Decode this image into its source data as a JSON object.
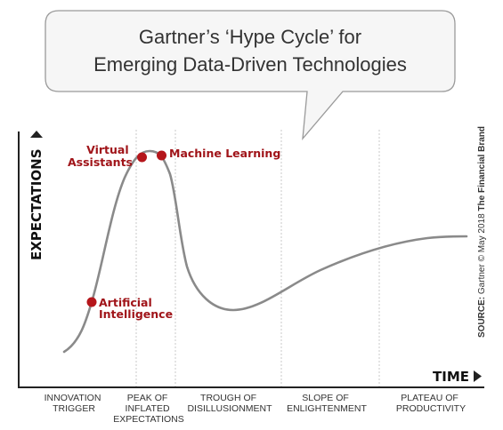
{
  "title": {
    "line1": "Gartner’s ‘Hype Cycle’ for",
    "line2": "Emerging Data-Driven Technologies"
  },
  "axes": {
    "y_label": "EXPECTATIONS",
    "x_label": "TIME"
  },
  "phases": [
    {
      "lines": [
        "INNOVATION",
        "TRIGGER"
      ]
    },
    {
      "lines": [
        "PEAK OF",
        "INFLATED",
        "EXPECTATIONS"
      ]
    },
    {
      "lines": [
        "TROUGH OF",
        "DISILLUSIONMENT"
      ]
    },
    {
      "lines": [
        "SLOPE OF",
        "ENLIGHTENMENT"
      ]
    },
    {
      "lines": [
        "PLATEAU OF",
        "PRODUCTIVITY"
      ]
    }
  ],
  "technologies": [
    {
      "lines": [
        "Virtual",
        "Assistants"
      ]
    },
    {
      "lines": [
        "Machine Learning"
      ]
    },
    {
      "lines": [
        "Artificial",
        "Intelligence"
      ]
    }
  ],
  "source": {
    "prefix": "SOURCE:",
    "text": " Gartner © May 2018 ",
    "brand": "The Financial Brand"
  },
  "colors": {
    "curve": "#8a8a8a",
    "marker": "#b5161b",
    "marker_label": "#a01419",
    "axis": "#222222",
    "divider": "#c8c8c8",
    "bubble_stroke": "#9a9a9a",
    "bubble_fill": "#f6f6f6"
  }
}
